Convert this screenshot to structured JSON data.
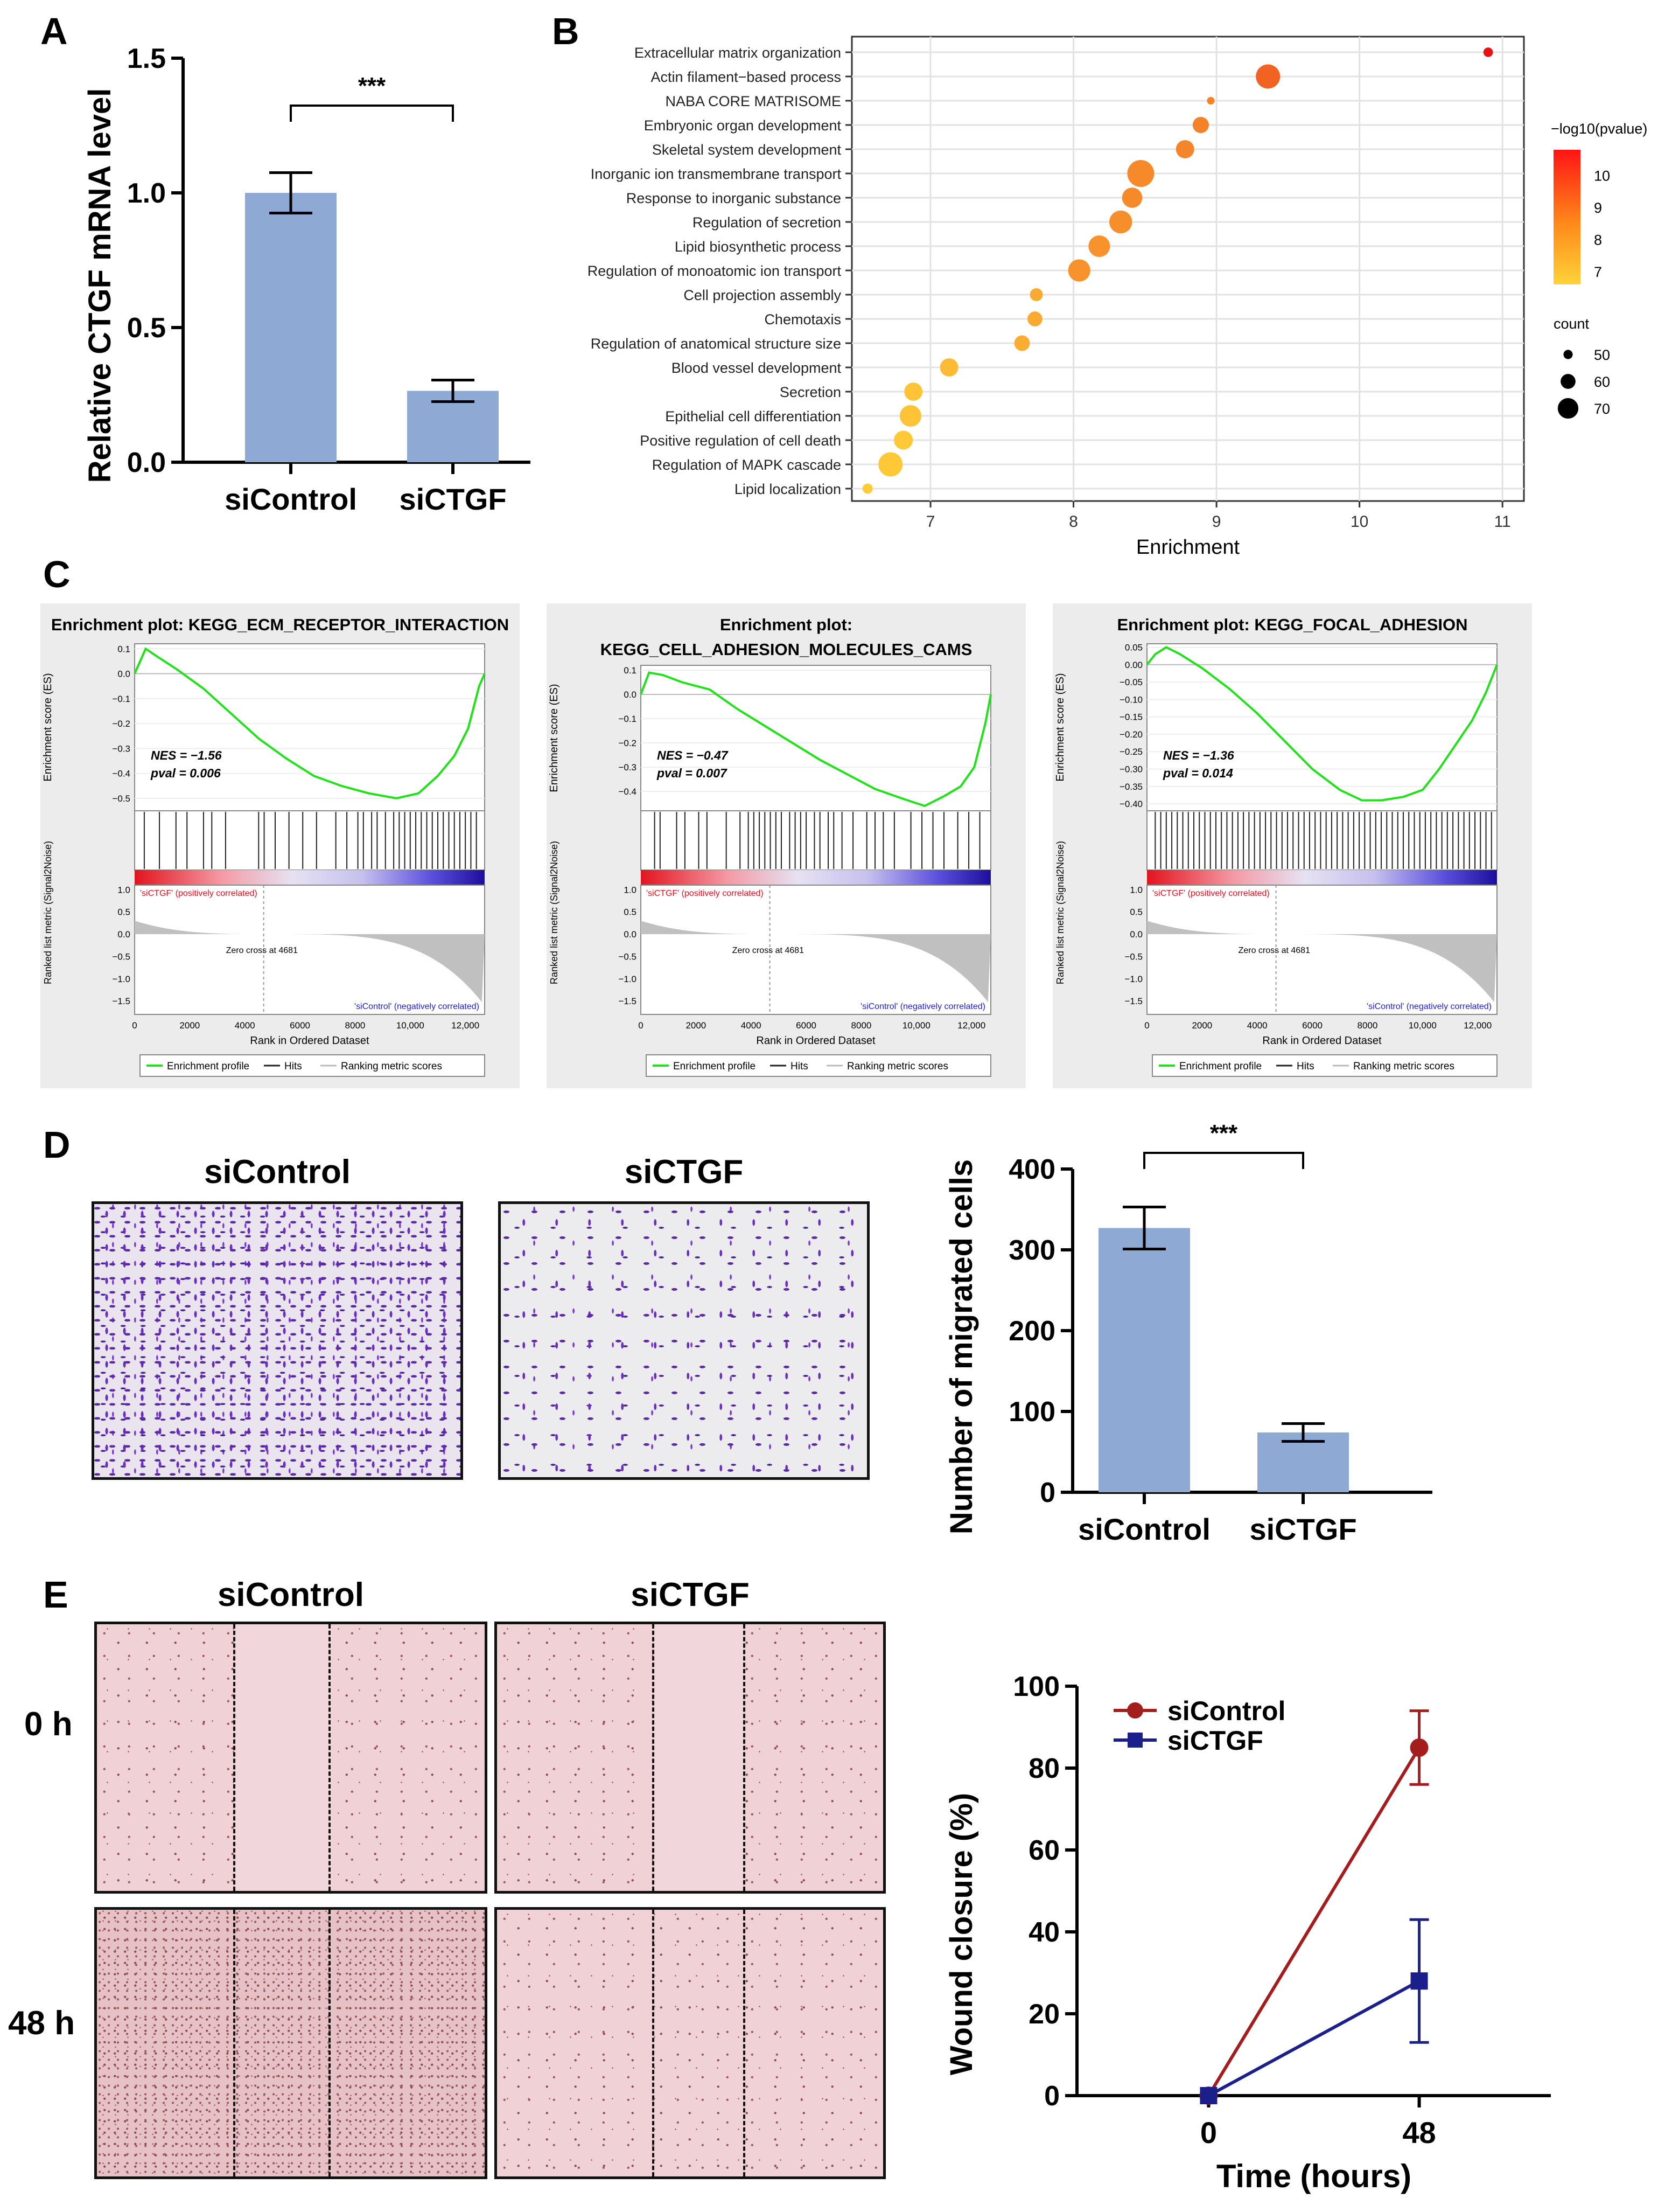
{
  "panels": {
    "A": {
      "letter": "A"
    },
    "B": {
      "letter": "B"
    },
    "C": {
      "letter": "C"
    },
    "D": {
      "letter": "D",
      "image_labels": [
        "siControl",
        "siCTGF"
      ]
    },
    "E": {
      "letter": "E",
      "image_labels": [
        "siControl",
        "siCTGF"
      ],
      "row_labels": [
        "0 h",
        "48 h"
      ]
    }
  },
  "chart_data": [
    {
      "id": "A",
      "type": "bar",
      "categories": [
        "siControl",
        "siCTGF"
      ],
      "values": [
        1.0,
        0.265
      ],
      "error": [
        0.075,
        0.04
      ],
      "ylabel": "Relative CTGF mRNA level",
      "ylim": [
        0,
        1.5
      ],
      "yticks": [
        "0.0",
        "0.5",
        "1.0",
        "1.5"
      ],
      "significance": "***",
      "bar_color": "#8eaad4"
    },
    {
      "id": "B",
      "type": "scatter",
      "xlabel": "Enrichment",
      "xlim": [
        6.45,
        11.15
      ],
      "xticks": [
        "7",
        "8",
        "9",
        "10",
        "11"
      ],
      "terms": [
        {
          "term": "Extracellular matrix organization",
          "enrichment": 10.9,
          "count": 48,
          "p": 10.8
        },
        {
          "term": "Actin filament−based process",
          "enrichment": 9.36,
          "count": 70,
          "p": 9.0
        },
        {
          "term": "NABA CORE MATRISOME",
          "enrichment": 8.96,
          "count": 45,
          "p": 8.3
        },
        {
          "term": "Embryonic organ development",
          "enrichment": 8.89,
          "count": 58,
          "p": 8.3
        },
        {
          "term": "Skeletal system development",
          "enrichment": 8.78,
          "count": 61,
          "p": 8.2
        },
        {
          "term": "Inorganic ion transmembrane transport",
          "enrichment": 8.47,
          "count": 74,
          "p": 8.1
        },
        {
          "term": "Response to inorganic substance",
          "enrichment": 8.41,
          "count": 64,
          "p": 8.1
        },
        {
          "term": "Regulation of secretion",
          "enrichment": 8.33,
          "count": 68,
          "p": 8.0
        },
        {
          "term": "Lipid biosynthetic process",
          "enrichment": 8.18,
          "count": 66,
          "p": 7.9
        },
        {
          "term": "Regulation of monoatomic ion transport",
          "enrichment": 8.04,
          "count": 67,
          "p": 7.9
        },
        {
          "term": "Cell projection assembly",
          "enrichment": 7.74,
          "count": 53,
          "p": 7.4
        },
        {
          "term": "Chemotaxis",
          "enrichment": 7.73,
          "count": 56,
          "p": 7.4
        },
        {
          "term": "Regulation of anatomical structure size",
          "enrichment": 7.64,
          "count": 57,
          "p": 7.3
        },
        {
          "term": "Blood vessel development",
          "enrichment": 7.13,
          "count": 61,
          "p": 7.0
        },
        {
          "term": "Secretion",
          "enrichment": 6.88,
          "count": 61,
          "p": 6.8
        },
        {
          "term": "Epithelial cell differentiation",
          "enrichment": 6.86,
          "count": 66,
          "p": 6.8
        },
        {
          "term": "Positive regulation of cell death",
          "enrichment": 6.81,
          "count": 62,
          "p": 6.7
        },
        {
          "term": "Regulation of MAPK cascade",
          "enrichment": 6.72,
          "count": 70,
          "p": 6.7
        },
        {
          "term": "Lipid localization",
          "enrichment": 6.56,
          "count": 49,
          "p": 6.6
        }
      ],
      "color_legend": {
        "title": "−log10(pvalue)",
        "ticks": [
          "10",
          "9",
          "8",
          "7"
        ],
        "range": [
          6.6,
          10.8
        ]
      },
      "size_legend": {
        "title": "count",
        "ticks": [
          "50",
          "60",
          "70"
        ]
      }
    },
    {
      "id": "C",
      "type": "line",
      "gsea": [
        {
          "title_lines": [
            "Enrichment plot: KEGG_ECM_RECEPTOR_INTERACTION"
          ],
          "nes": "NES = −1.56",
          "pval": "pval = 0.006",
          "ylim": [
            -0.55,
            0.12
          ],
          "yticks": [
            "0.1",
            "0.0",
            "−0.1",
            "−0.2",
            "−0.3",
            "−0.4",
            "−0.5"
          ],
          "es_curve": [
            [
              0,
              0.0
            ],
            [
              400,
              0.1
            ],
            [
              800,
              0.07
            ],
            [
              1500,
              0.02
            ],
            [
              2500,
              -0.06
            ],
            [
              3500,
              -0.16
            ],
            [
              4500,
              -0.26
            ],
            [
              5500,
              -0.34
            ],
            [
              6500,
              -0.41
            ],
            [
              7500,
              -0.45
            ],
            [
              8500,
              -0.48
            ],
            [
              9500,
              -0.5
            ],
            [
              10300,
              -0.48
            ],
            [
              11000,
              -0.41
            ],
            [
              11600,
              -0.33
            ],
            [
              12100,
              -0.22
            ],
            [
              12500,
              -0.05
            ],
            [
              12700,
              0.0
            ]
          ],
          "hits_x": [
            350,
            900,
            1500,
            1900,
            2500,
            2800,
            3300,
            4500,
            4700,
            5100,
            5600,
            6100,
            6600,
            7300,
            7700,
            8100,
            8300,
            8600,
            8800,
            9100,
            9400,
            9600,
            9800,
            10000,
            10200,
            10400,
            10600,
            10800,
            11000,
            11200,
            11400,
            11600,
            11800,
            12000,
            12200,
            12400
          ]
        },
        {
          "title_lines": [
            "Enrichment plot:",
            "KEGG_CELL_ADHESION_MOLECULES_CAMS"
          ],
          "nes": "NES = −0.47",
          "pval": "pval = 0.007",
          "ylim": [
            -0.48,
            0.12
          ],
          "yticks": [
            "0.1",
            "0.0",
            "−0.1",
            "−0.2",
            "−0.3",
            "−0.4"
          ],
          "es_curve": [
            [
              0,
              0.0
            ],
            [
              300,
              0.09
            ],
            [
              800,
              0.08
            ],
            [
              1500,
              0.05
            ],
            [
              2500,
              0.02
            ],
            [
              3500,
              -0.06
            ],
            [
              4500,
              -0.13
            ],
            [
              5500,
              -0.2
            ],
            [
              6500,
              -0.27
            ],
            [
              7500,
              -0.33
            ],
            [
              8500,
              -0.39
            ],
            [
              9500,
              -0.43
            ],
            [
              10300,
              -0.46
            ],
            [
              11000,
              -0.42
            ],
            [
              11600,
              -0.38
            ],
            [
              12100,
              -0.3
            ],
            [
              12500,
              -0.12
            ],
            [
              12700,
              0.0
            ]
          ],
          "hits_x": [
            500,
            700,
            1300,
            1600,
            2100,
            2400,
            3100,
            3600,
            3900,
            4100,
            4300,
            4500,
            4700,
            4900,
            5100,
            5400,
            5600,
            5800,
            6000,
            6300,
            6500,
            6800,
            7000,
            7300,
            7700,
            8200,
            8500,
            8800,
            9200,
            9800,
            10200,
            10600,
            11000,
            11500,
            11900,
            12300
          ]
        },
        {
          "title_lines": [
            "Enrichment plot: KEGG_FOCAL_ADHESION"
          ],
          "nes": "NES = −1.36",
          "pval": "pval = 0.014",
          "ylim": [
            -0.42,
            0.06
          ],
          "yticks": [
            "0.05",
            "0.00",
            "−0.05",
            "−0.10",
            "−0.15",
            "−0.20",
            "−0.25",
            "−0.30",
            "−0.35",
            "−0.40"
          ],
          "es_curve": [
            [
              0,
              0.0
            ],
            [
              300,
              0.03
            ],
            [
              700,
              0.05
            ],
            [
              1200,
              0.03
            ],
            [
              2000,
              -0.01
            ],
            [
              3000,
              -0.07
            ],
            [
              4000,
              -0.14
            ],
            [
              5000,
              -0.22
            ],
            [
              6000,
              -0.3
            ],
            [
              7000,
              -0.36
            ],
            [
              7800,
              -0.39
            ],
            [
              8500,
              -0.39
            ],
            [
              9300,
              -0.38
            ],
            [
              10000,
              -0.36
            ],
            [
              10600,
              -0.3
            ],
            [
              11200,
              -0.23
            ],
            [
              11800,
              -0.16
            ],
            [
              12300,
              -0.08
            ],
            [
              12700,
              0.0
            ]
          ],
          "hits_x": [
            300,
            500,
            700,
            900,
            1100,
            1300,
            1500,
            1700,
            1900,
            2100,
            2300,
            2500,
            2700,
            2900,
            3100,
            3300,
            3500,
            3700,
            3900,
            4100,
            4300,
            4500,
            4700,
            4900,
            5100,
            5300,
            5500,
            5700,
            5900,
            6100,
            6300,
            6500,
            6700,
            6900,
            7100,
            7300,
            7500,
            7700,
            7900,
            8100,
            8300,
            8500,
            8700,
            8900,
            9100,
            9300,
            9500,
            9700,
            9900,
            10100,
            10300,
            10500,
            10700,
            10900,
            11100,
            11300,
            11500,
            11700,
            11900,
            12100,
            12300,
            12500
          ]
        }
      ],
      "es_ylabel": "Enrichment score (ES)",
      "rank_ylabel": "Ranked list metric (Signal2Noise)",
      "rank_yticks": [
        "1.0",
        "0.5",
        "0.0",
        "−0.5",
        "−1.0",
        "−1.5"
      ],
      "rank_ylim": [
        -1.8,
        1.1
      ],
      "xlabel": "Rank in Ordered Dataset",
      "xticks": [
        "0",
        "2000",
        "4000",
        "6000",
        "8000",
        "10,000",
        "12,000"
      ],
      "xlim": [
        0,
        12700
      ],
      "pos_label": "'siCTGF' (positively correlated)",
      "neg_label": "'siControl' (negatively correlated)",
      "zero_cross": "Zero cross at 4681",
      "zero_cross_x": 4681,
      "legend": [
        "Enrichment profile",
        "Hits",
        "Ranking metric scores"
      ],
      "line_color": "#22e01a"
    },
    {
      "id": "D",
      "type": "bar",
      "categories": [
        "siControl",
        "siCTGF"
      ],
      "values": [
        327,
        74
      ],
      "error": [
        26,
        11
      ],
      "ylabel": "Number of migrated cells",
      "ylim": [
        0,
        400
      ],
      "yticks": [
        "0",
        "100",
        "200",
        "300",
        "400"
      ],
      "significance": "***",
      "bar_color": "#8eaad4"
    },
    {
      "id": "E",
      "type": "line",
      "x": [
        0,
        48
      ],
      "xticks": [
        "0",
        "48"
      ],
      "xlim": [
        -30,
        78
      ],
      "series": [
        {
          "name": "siControl",
          "values": [
            0,
            85
          ],
          "error": [
            0,
            9
          ],
          "color": "#a51c1c",
          "marker": "circle"
        },
        {
          "name": "siCTGF",
          "values": [
            0,
            28
          ],
          "error": [
            0,
            15
          ],
          "color": "#1a1f8c",
          "marker": "square"
        }
      ],
      "xlabel": "Time (hours)",
      "ylabel": "Wound closure (%)",
      "ylim": [
        0,
        100
      ],
      "yticks": [
        "0",
        "20",
        "40",
        "60",
        "80",
        "100"
      ],
      "legend_placement": "top-left"
    }
  ]
}
